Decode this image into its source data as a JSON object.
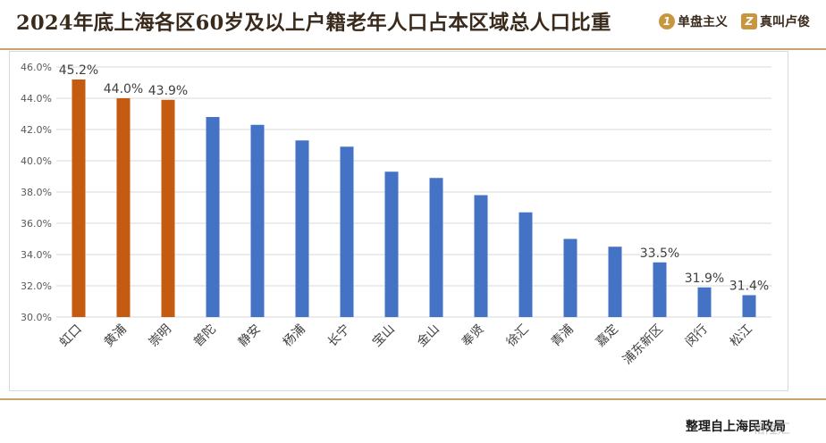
{
  "header": {
    "title": "2024年底上海各区60岁及以上户籍老年人口占本区域总人口比重",
    "brand_1": "单盘主义",
    "brand_2": "真叫卢俊"
  },
  "footer": {
    "source": "整理自上海民政局",
    "watermark": "格隆汇"
  },
  "colors": {
    "highlight": "#c55a11",
    "normal": "#4472c4",
    "rule": "#c9a46a"
  },
  "chart_data": {
    "type": "bar",
    "title": "",
    "xlabel": "",
    "ylabel": "",
    "ylim": [
      30,
      46
    ],
    "yticks": [
      "30.0%",
      "32.0%",
      "34.0%",
      "36.0%",
      "38.0%",
      "40.0%",
      "42.0%",
      "44.0%",
      "46.0%"
    ],
    "grid": true,
    "categories": [
      "虹口",
      "黄浦",
      "崇明",
      "普陀",
      "静安",
      "杨浦",
      "长宁",
      "宝山",
      "金山",
      "奉贤",
      "徐汇",
      "青浦",
      "嘉定",
      "浦东新区",
      "闵行",
      "松江"
    ],
    "values": [
      45.2,
      44.0,
      43.9,
      42.8,
      42.3,
      41.3,
      40.9,
      39.3,
      38.9,
      37.8,
      36.7,
      35.0,
      34.5,
      33.5,
      31.9,
      31.4
    ],
    "highlighted": [
      true,
      true,
      true,
      false,
      false,
      false,
      false,
      false,
      false,
      false,
      false,
      false,
      false,
      false,
      false,
      false
    ],
    "data_labels": [
      "45.2%",
      "44.0%",
      "43.9%",
      "",
      "",
      "",
      "",
      "",
      "",
      "",
      "",
      "",
      "",
      "33.5%",
      "31.9%",
      "31.4%"
    ]
  }
}
